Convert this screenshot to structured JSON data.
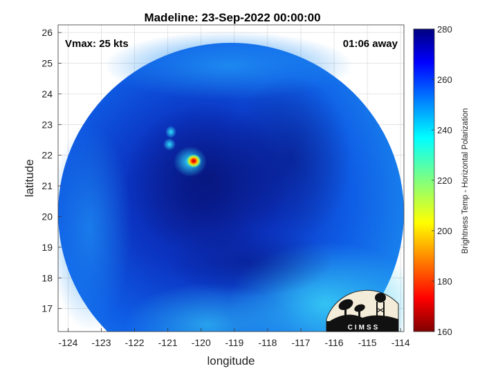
{
  "chart_data": {
    "type": "heatmap",
    "title": "Madeline: 23-Sep-2022 00:00:00",
    "xlabel": "longitude",
    "ylabel": "latitude",
    "xlim": [
      -124.3,
      -113.9
    ],
    "ylim": [
      16.25,
      26.25
    ],
    "xticks": [
      -124,
      -123,
      -122,
      -121,
      -120,
      -119,
      -118,
      -117,
      -116,
      -115,
      -114
    ],
    "yticks": [
      17,
      18,
      19,
      20,
      21,
      22,
      23,
      24,
      25,
      26
    ],
    "grid": true,
    "annotations": {
      "vmax": "Vmax: 25 kts",
      "time_offset": "01:06 away"
    },
    "colorbar": {
      "label": "Brightness Temp - Horizontal Polarization",
      "min": 160,
      "max": 280,
      "ticks": [
        160,
        180,
        200,
        220,
        240,
        260,
        280
      ],
      "colormap": "jet"
    },
    "swath_center": [
      -119.1,
      21.2
    ],
    "features": [
      {
        "name": "deep-convection-core",
        "lon": -120.0,
        "lat": 21.85,
        "value": 165
      },
      {
        "name": "convective-cell-north",
        "lon": -121.0,
        "lat": 22.95,
        "value": 238
      },
      {
        "name": "convective-cell-west",
        "lon": -121.15,
        "lat": 22.3,
        "value": 235
      }
    ],
    "logo": "CIMSS"
  }
}
